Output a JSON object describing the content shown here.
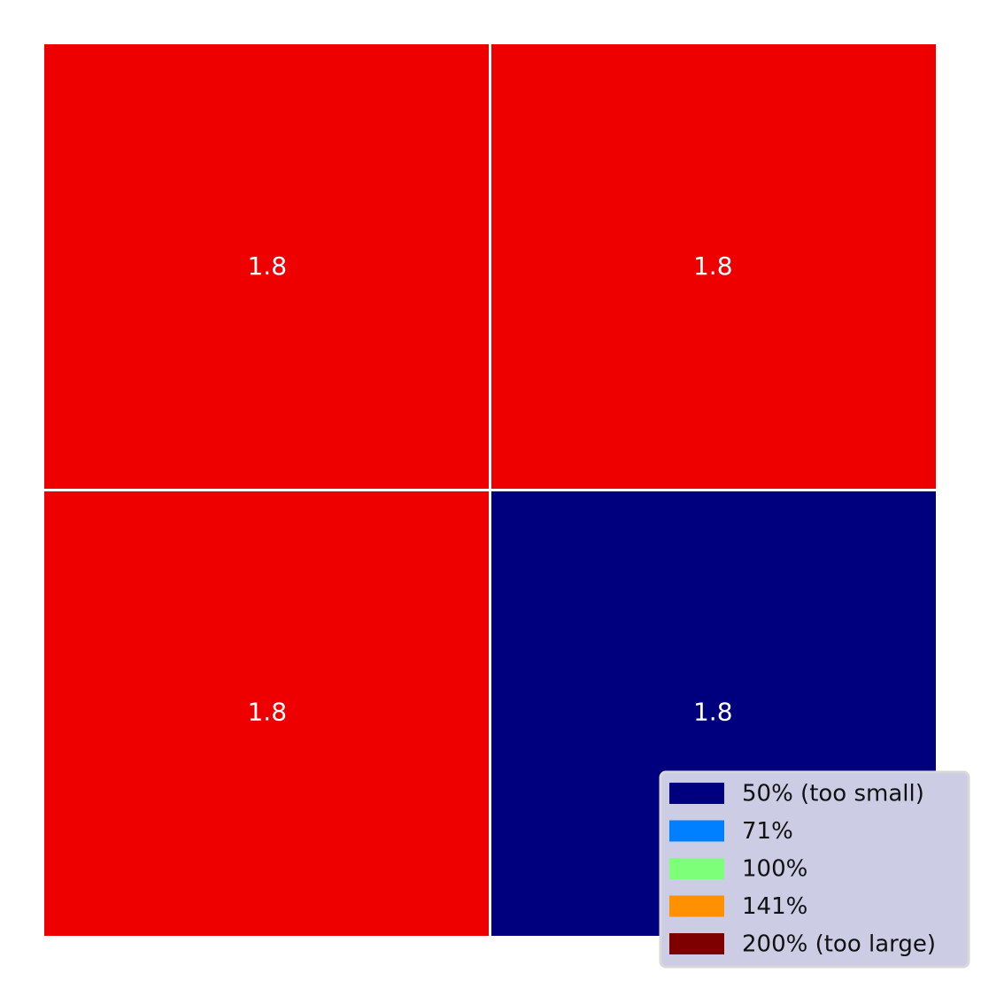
{
  "chart_data": {
    "type": "heatmap",
    "title": "",
    "xlabel": "",
    "ylabel": "",
    "grid": false,
    "rows": 2,
    "cols": 2,
    "cells": [
      {
        "row": 0,
        "col": 0,
        "label": "1.8",
        "color": "#ee0000"
      },
      {
        "row": 0,
        "col": 1,
        "label": "1.8",
        "color": "#ee0000"
      },
      {
        "row": 1,
        "col": 0,
        "label": "1.8",
        "color": "#ee0000"
      },
      {
        "row": 1,
        "col": 1,
        "label": "1.8",
        "color": "#00007f"
      }
    ],
    "legend": {
      "placement": "bottom-right",
      "entries": [
        {
          "label": "50% (too small)",
          "color": "#00007f"
        },
        {
          "label": "71%",
          "color": "#0080ff"
        },
        {
          "label": "100%",
          "color": "#7dff7a"
        },
        {
          "label": "141%",
          "color": "#ff9100"
        },
        {
          "label": "200% (too large)",
          "color": "#7f0000"
        }
      ]
    }
  }
}
